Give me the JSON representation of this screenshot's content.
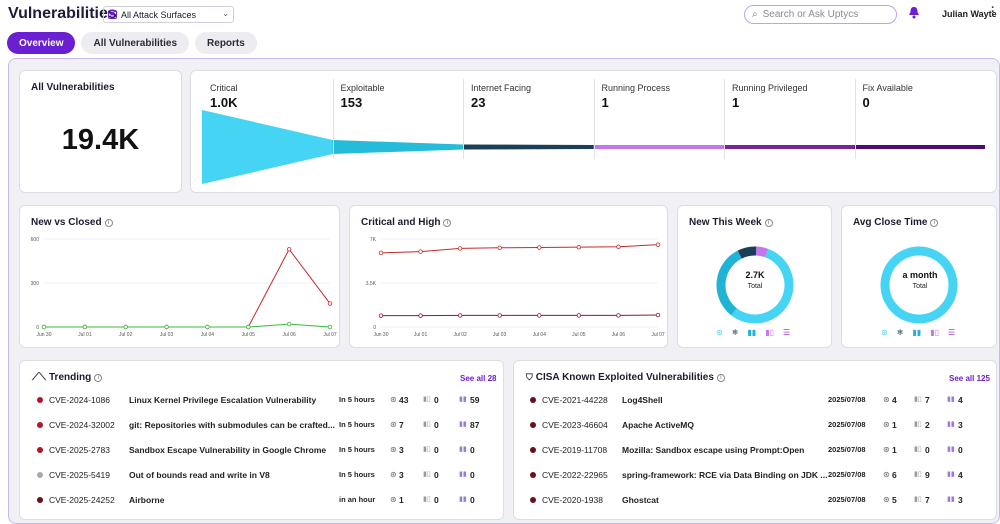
{
  "app_title": "Vulnerabilities",
  "surface_select": "All Attack Surfaces",
  "search_placeholder": "Search or Ask Uptycs",
  "user_name": "Julian Wayte",
  "tabs": [
    "Overview",
    "All Vulnerabilities",
    "Reports"
  ],
  "all_vulns": {
    "title": "All Vulnerabilities",
    "value": "19.4K"
  },
  "funnel": [
    {
      "label": "Critical",
      "value": "1.0K",
      "color": "#45d4f4"
    },
    {
      "label": "Exploitable",
      "value": "153",
      "color": "#24bcd9"
    },
    {
      "label": "Internet Facing",
      "value": "23",
      "color": "#1b3f56"
    },
    {
      "label": "Running Process",
      "value": "1",
      "color": "#c277ed"
    },
    {
      "label": "Running Privileged",
      "value": "1",
      "color": "#7a229a"
    },
    {
      "label": "Fix Available",
      "value": "0",
      "color": "#4b0d73"
    }
  ],
  "new_vs_closed": {
    "title": "New vs Closed"
  },
  "critical_high": {
    "title": "Critical and High"
  },
  "new_this_week": {
    "title": "New This Week",
    "value": "2.7K",
    "label": "Total"
  },
  "avg_close": {
    "title": "Avg Close Time",
    "value": "a month",
    "label": "Total"
  },
  "trending": {
    "title": "Trending",
    "see_all": "See all 28",
    "rows": [
      {
        "cve": "CVE-2024-1086",
        "desc": "Linux Kernel Privilege Escalation Vulnerability",
        "time": "In 5 hours",
        "a": "43",
        "b": "0",
        "c": "59",
        "color": "#b3152a"
      },
      {
        "cve": "CVE-2024-32002",
        "desc": "git: Repositories with submodules can be crafted...",
        "time": "In 5 hours",
        "a": "7",
        "b": "0",
        "c": "87",
        "color": "#b3152a"
      },
      {
        "cve": "CVE-2025-2783",
        "desc": "Sandbox Escape Vulnerability in Google Chrome",
        "time": "In 5 hours",
        "a": "3",
        "b": "0",
        "c": "0",
        "color": "#b3152a"
      },
      {
        "cve": "CVE-2025-5419",
        "desc": "Out of bounds read and write in V8",
        "time": "In 5 hours",
        "a": "3",
        "b": "0",
        "c": "0",
        "color": "#a8a8b0"
      },
      {
        "cve": "CVE-2025-24252",
        "desc": "Airborne",
        "time": "in an hour",
        "a": "1",
        "b": "0",
        "c": "0",
        "color": "#6b0f1f"
      }
    ]
  },
  "cisa": {
    "title": "CISA Known Exploited Vulnerabilities",
    "see_all": "See all 125",
    "rows": [
      {
        "cve": "CVE-2021-44228",
        "desc": "Log4Shell",
        "time": "2025/07/08",
        "a": "4",
        "b": "7",
        "c": "4",
        "color": "#6b0f1f"
      },
      {
        "cve": "CVE-2023-46604",
        "desc": "Apache ActiveMQ",
        "time": "2025/07/08",
        "a": "1",
        "b": "2",
        "c": "3",
        "color": "#6b0f1f"
      },
      {
        "cve": "CVE-2019-11708",
        "desc": "Mozilla: Sandbox escape using Prompt:Open",
        "time": "2025/07/08",
        "a": "1",
        "b": "0",
        "c": "0",
        "color": "#6b0f1f"
      },
      {
        "cve": "CVE-2022-22965",
        "desc": "spring-framework: RCE via Data Binding on JDK ...",
        "time": "2025/07/08",
        "a": "6",
        "b": "9",
        "c": "4",
        "color": "#6b0f1f"
      },
      {
        "cve": "CVE-2020-1938",
        "desc": "Ghostcat",
        "time": "2025/07/08",
        "a": "5",
        "b": "7",
        "c": "3",
        "color": "#6b0f1f"
      }
    ]
  },
  "colors": {
    "accent": "#6a1fd1",
    "red": "#c62b2b",
    "green": "#3dbb3d",
    "cyan": "#45d4f4"
  },
  "chart_data": [
    {
      "type": "line",
      "title": "New vs Closed",
      "x": [
        "Jun 30",
        "Jul 01",
        "Jul 02",
        "Jul 03",
        "Jul 04",
        "Jul 05",
        "Jul 06",
        "Jul 07"
      ],
      "yticks": [
        "0",
        "300",
        "600"
      ],
      "ylim": [
        0,
        600
      ],
      "series": [
        {
          "values": [
            0,
            0,
            0,
            0,
            0,
            0,
            530,
            160
          ],
          "color": "#c62b2b"
        },
        {
          "values": [
            0,
            0,
            0,
            0,
            0,
            0,
            20,
            0
          ],
          "color": "#3dbb3d"
        }
      ]
    },
    {
      "type": "line",
      "title": "Critical and High",
      "x": [
        "Jun 30",
        "Jul 01",
        "Jul 02",
        "Jul 03",
        "Jul 04",
        "Jul 05",
        "Jul 06",
        "Jul 07"
      ],
      "yticks": [
        "0",
        "3.5K",
        "7K"
      ],
      "ylim": [
        0,
        7000
      ],
      "series": [
        {
          "values": [
            5900,
            6000,
            6250,
            6300,
            6320,
            6350,
            6380,
            6550
          ],
          "color": "#c62b2b"
        },
        {
          "values": [
            900,
            900,
            920,
            920,
            920,
            920,
            920,
            950
          ],
          "color": "#8b1a2a"
        }
      ]
    },
    {
      "type": "pie",
      "title": "New This Week",
      "values": [
        55,
        32,
        8,
        5
      ],
      "colors": [
        "#45d4f4",
        "#1fb4d6",
        "#1b3f56",
        "#c277ed"
      ]
    },
    {
      "type": "pie",
      "title": "Avg Close Time",
      "values": [
        100
      ],
      "colors": [
        "#45d4f4"
      ]
    }
  ]
}
